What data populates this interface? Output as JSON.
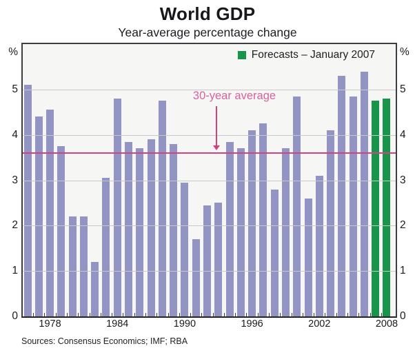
{
  "title": "World GDP",
  "subtitle": "Year-average percentage change",
  "legend": {
    "label": "Forecasts – January 2007"
  },
  "annotation": {
    "label": "30-year average"
  },
  "source_note": "Sources: Consensus Economics; IMF; RBA",
  "colors": {
    "bar": "#9294c4",
    "forecast_bar": "#18954b",
    "average_line": "#d2437e",
    "annotation_text": "#d7639f"
  },
  "chart_data": {
    "type": "bar",
    "title": "World GDP",
    "subtitle": "Year-average percentage change",
    "ylabel": "%",
    "ylim": [
      0,
      6
    ],
    "grid": "horizontal at 1,2,3,4,5",
    "legend_position": "top-right inside plot",
    "x": [
      1976,
      1977,
      1978,
      1979,
      1980,
      1981,
      1982,
      1983,
      1984,
      1985,
      1986,
      1987,
      1988,
      1989,
      1990,
      1991,
      1992,
      1993,
      1994,
      1995,
      1996,
      1997,
      1998,
      1999,
      2000,
      2001,
      2002,
      2003,
      2004,
      2005,
      2006,
      2007,
      2008
    ],
    "values": [
      5.1,
      4.4,
      4.55,
      3.75,
      2.2,
      2.2,
      1.2,
      3.05,
      4.8,
      3.85,
      3.7,
      3.9,
      4.75,
      3.8,
      2.95,
      1.7,
      2.45,
      2.5,
      3.85,
      3.7,
      4.1,
      4.25,
      2.8,
      3.7,
      4.85,
      2.6,
      3.1,
      4.1,
      5.3,
      4.85,
      5.4,
      4.75,
      4.8
    ],
    "forecast_years": [
      2007,
      2008
    ],
    "forecast_legend": "Forecasts – January 2007",
    "average_line": {
      "label": "30-year average",
      "value": 3.6
    },
    "yticks": [
      0,
      1,
      2,
      3,
      4,
      5
    ],
    "unit_label": "%",
    "x_tick_labels": [
      "1978",
      "1984",
      "1990",
      "1996",
      "2002",
      "2008"
    ]
  }
}
